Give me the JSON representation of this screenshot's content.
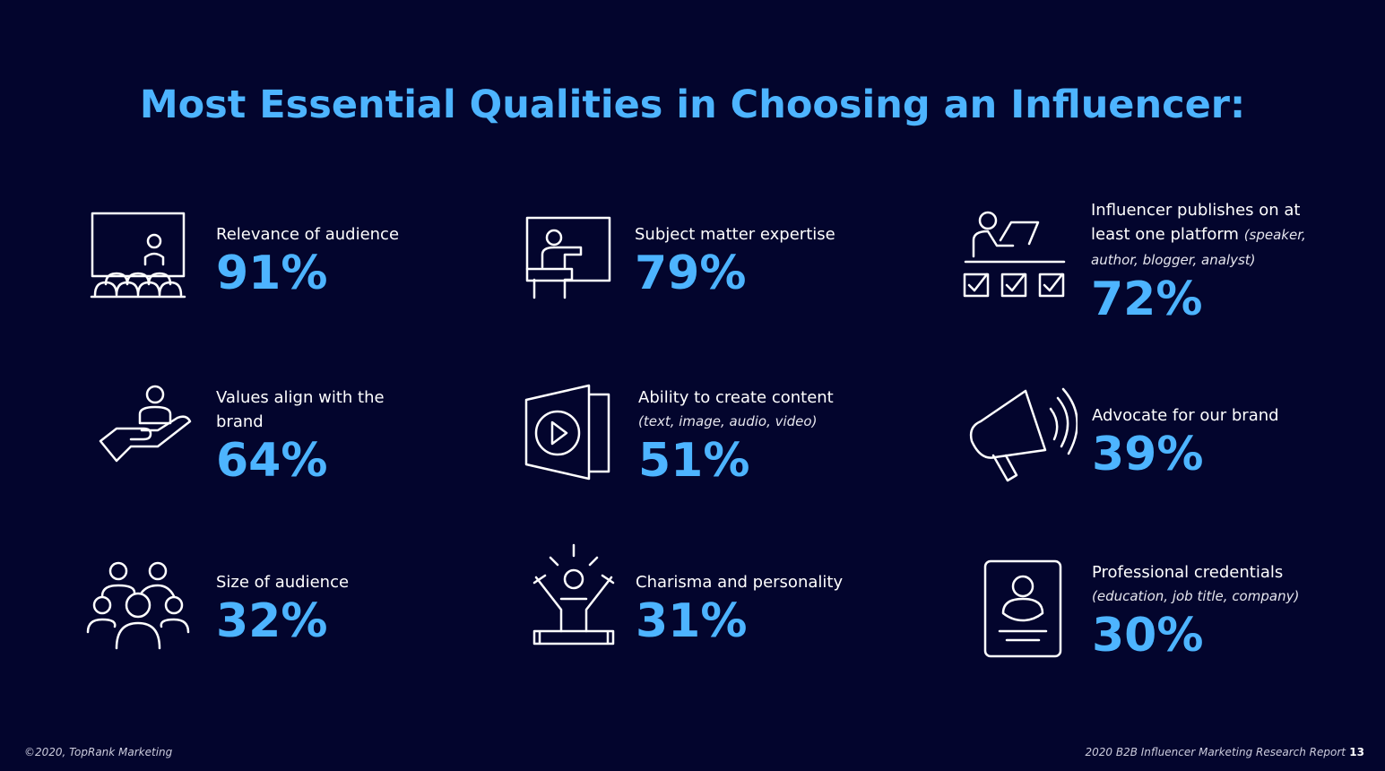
{
  "title": "Most Essential Qualities in Choosing an Influencer:",
  "items": [
    {
      "label": "Relevance of audience",
      "value": "91%"
    },
    {
      "label": "Subject matter expertise",
      "value": "79%"
    },
    {
      "label": "Influencer publishes on at least one platform",
      "note": "(speaker, author, blogger, analyst)",
      "value": "72%"
    },
    {
      "label": "Values align with the brand",
      "value": "64%"
    },
    {
      "label": "Ability to create content",
      "note": "(text, image, audio, video)",
      "value": "51%"
    },
    {
      "label": "Advocate for our brand",
      "value": "39%"
    },
    {
      "label": "Size of audience",
      "value": "32%"
    },
    {
      "label": "Charisma and personality",
      "value": "31%"
    },
    {
      "label": "Professional credentials",
      "note": "(education, job title, company)",
      "value": "30%"
    }
  ],
  "footer": {
    "left": "©2020, TopRank Marketing",
    "right": "2020 B2B Influencer Marketing Research Report",
    "page": "13"
  }
}
